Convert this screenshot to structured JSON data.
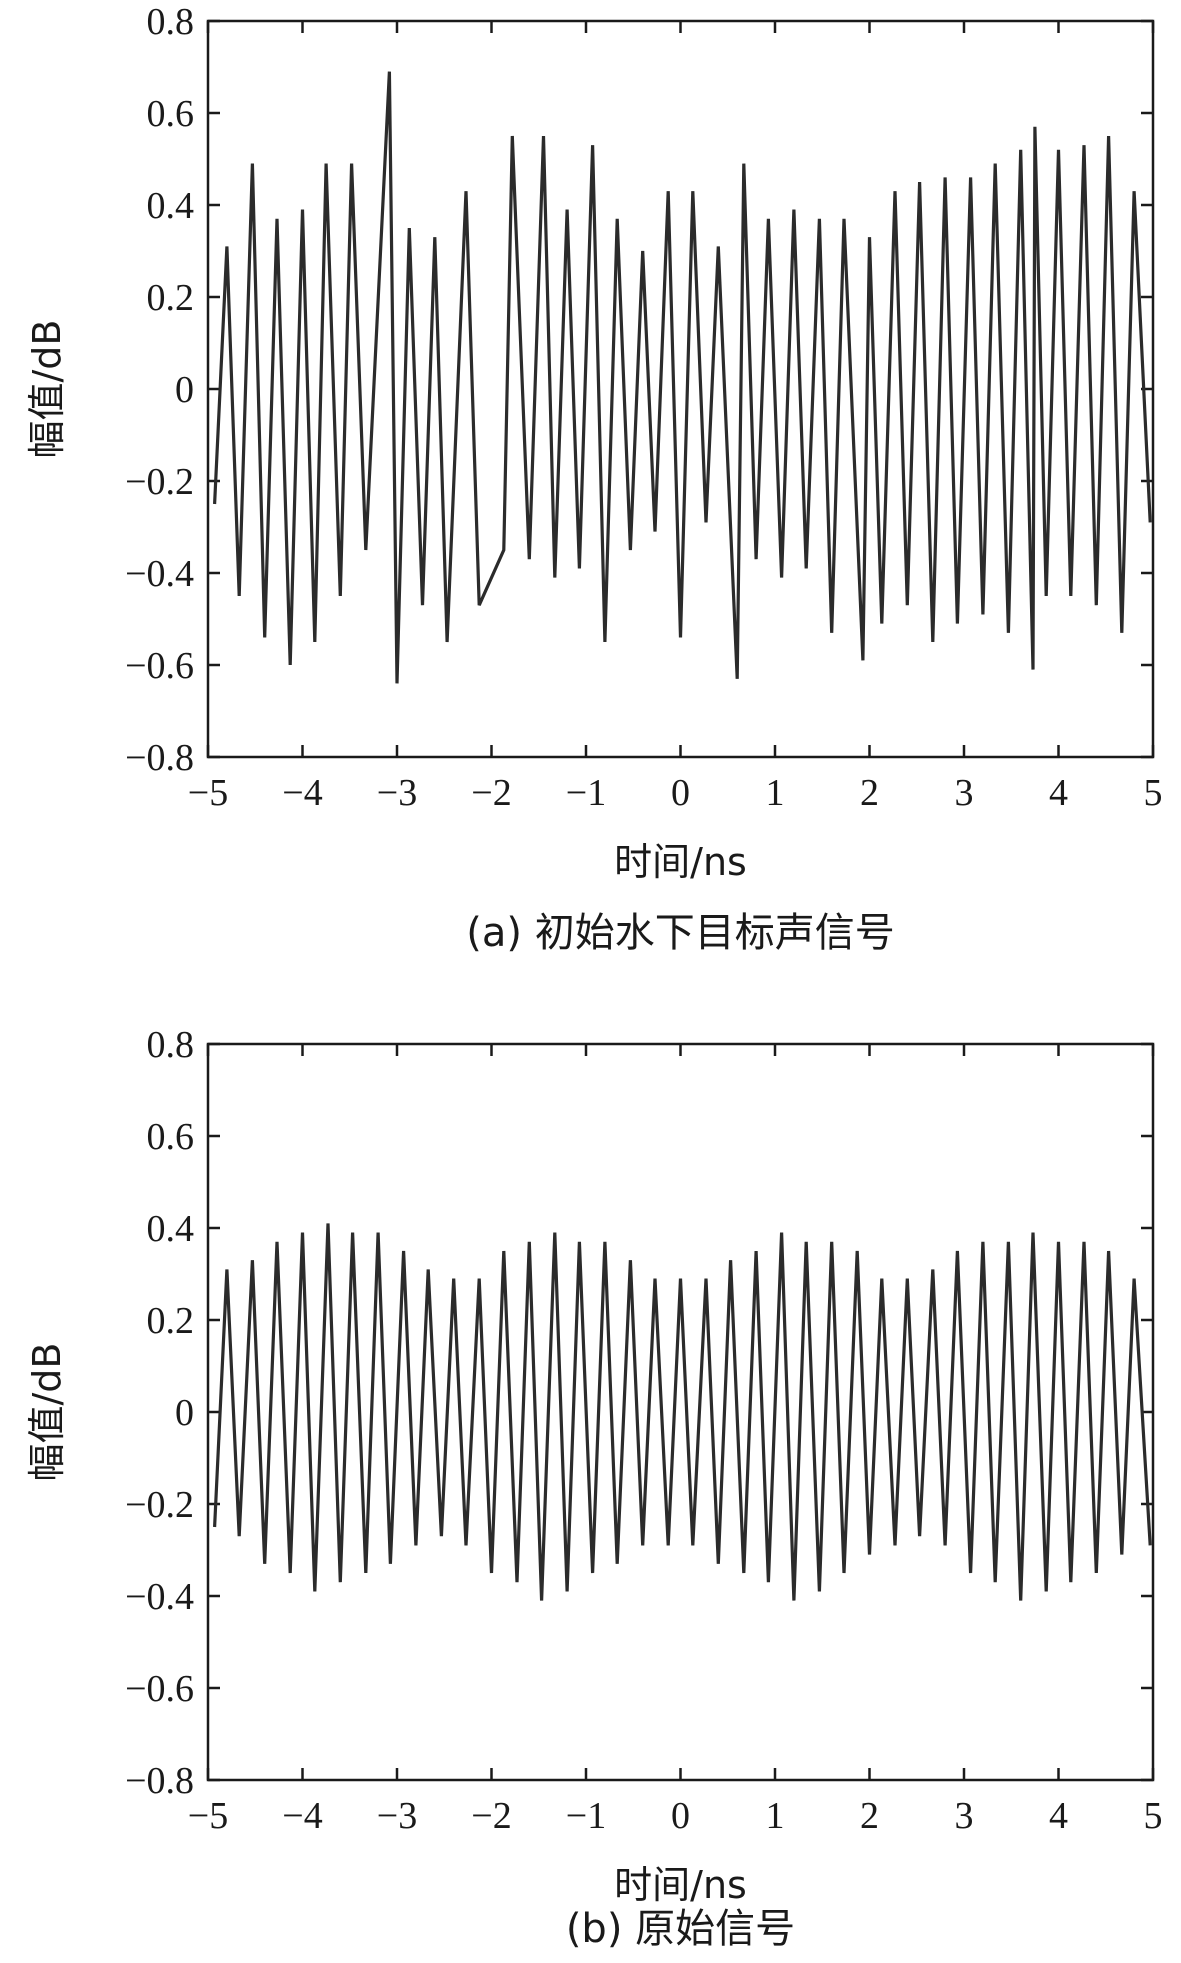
{
  "chart_data": [
    {
      "id": "a",
      "type": "line",
      "caption": "(a) 初始水下目标声信号",
      "xlabel": "时间/ns",
      "ylabel": "幅值/dB",
      "xlim": [
        -5,
        5
      ],
      "ylim": [
        -0.8,
        0.8
      ],
      "xticks": [
        -5,
        -4,
        -3,
        -2,
        -1,
        0,
        1,
        2,
        3,
        4,
        5
      ],
      "xtick_labels": [
        "−5",
        "−4",
        "−3",
        "−2",
        "−1",
        "0",
        "1",
        "2",
        "3",
        "4",
        "5"
      ],
      "yticks": [
        0.8,
        0.6,
        0.4,
        0.2,
        0,
        -0.2,
        -0.4,
        -0.6,
        -0.8
      ],
      "ytick_labels": [
        "0.8",
        "0.6",
        "0.4",
        "0.2",
        "0",
        "−0.2",
        "−0.4",
        "−0.6",
        "−0.8"
      ],
      "grid": false,
      "peaks": [
        {
          "x": -4.8,
          "y": 0.31
        },
        {
          "x": -4.53,
          "y": 0.49
        },
        {
          "x": -4.27,
          "y": 0.37
        },
        {
          "x": -4.0,
          "y": 0.39
        },
        {
          "x": -3.75,
          "y": 0.49
        },
        {
          "x": -3.48,
          "y": 0.49
        },
        {
          "x": -3.08,
          "y": 0.69
        },
        {
          "x": -2.87,
          "y": 0.35
        },
        {
          "x": -2.6,
          "y": 0.33
        },
        {
          "x": -2.27,
          "y": 0.43
        },
        {
          "x": -1.78,
          "y": 0.55
        },
        {
          "x": -1.45,
          "y": 0.55
        },
        {
          "x": -1.2,
          "y": 0.39
        },
        {
          "x": -0.93,
          "y": 0.53
        },
        {
          "x": -0.67,
          "y": 0.37
        },
        {
          "x": -0.4,
          "y": 0.3
        },
        {
          "x": -0.13,
          "y": 0.43
        },
        {
          "x": 0.13,
          "y": 0.43
        },
        {
          "x": 0.4,
          "y": 0.31
        },
        {
          "x": 0.67,
          "y": 0.49
        },
        {
          "x": 0.93,
          "y": 0.37
        },
        {
          "x": 1.2,
          "y": 0.39
        },
        {
          "x": 1.47,
          "y": 0.37
        },
        {
          "x": 1.73,
          "y": 0.37
        },
        {
          "x": 2.0,
          "y": 0.33
        },
        {
          "x": 2.27,
          "y": 0.43
        },
        {
          "x": 2.53,
          "y": 0.45
        },
        {
          "x": 2.8,
          "y": 0.46
        },
        {
          "x": 3.07,
          "y": 0.46
        },
        {
          "x": 3.33,
          "y": 0.49
        },
        {
          "x": 3.6,
          "y": 0.52
        },
        {
          "x": 3.75,
          "y": 0.57
        },
        {
          "x": 4.0,
          "y": 0.52
        },
        {
          "x": 4.27,
          "y": 0.53
        },
        {
          "x": 4.53,
          "y": 0.55
        },
        {
          "x": 4.8,
          "y": 0.43
        }
      ],
      "troughs": [
        {
          "x": -4.93,
          "y": -0.25
        },
        {
          "x": -4.67,
          "y": -0.45
        },
        {
          "x": -4.4,
          "y": -0.54
        },
        {
          "x": -4.13,
          "y": -0.6
        },
        {
          "x": -3.87,
          "y": -0.55
        },
        {
          "x": -3.6,
          "y": -0.45
        },
        {
          "x": -3.33,
          "y": -0.35
        },
        {
          "x": -3.0,
          "y": -0.64
        },
        {
          "x": -2.73,
          "y": -0.47
        },
        {
          "x": -2.47,
          "y": -0.55
        },
        {
          "x": -2.13,
          "y": -0.47
        },
        {
          "x": -1.87,
          "y": -0.35
        },
        {
          "x": -1.6,
          "y": -0.37
        },
        {
          "x": -1.33,
          "y": -0.41
        },
        {
          "x": -1.07,
          "y": -0.39
        },
        {
          "x": -0.8,
          "y": -0.55
        },
        {
          "x": -0.53,
          "y": -0.35
        },
        {
          "x": -0.27,
          "y": -0.31
        },
        {
          "x": 0.0,
          "y": -0.54
        },
        {
          "x": 0.27,
          "y": -0.29
        },
        {
          "x": 0.6,
          "y": -0.63
        },
        {
          "x": 0.8,
          "y": -0.37
        },
        {
          "x": 1.07,
          "y": -0.41
        },
        {
          "x": 1.33,
          "y": -0.39
        },
        {
          "x": 1.6,
          "y": -0.53
        },
        {
          "x": 1.93,
          "y": -0.59
        },
        {
          "x": 2.13,
          "y": -0.51
        },
        {
          "x": 2.4,
          "y": -0.47
        },
        {
          "x": 2.67,
          "y": -0.55
        },
        {
          "x": 2.93,
          "y": -0.51
        },
        {
          "x": 3.2,
          "y": -0.49
        },
        {
          "x": 3.47,
          "y": -0.53
        },
        {
          "x": 3.73,
          "y": -0.61
        },
        {
          "x": 3.87,
          "y": -0.45
        },
        {
          "x": 4.13,
          "y": -0.45
        },
        {
          "x": 4.4,
          "y": -0.47
        },
        {
          "x": 4.67,
          "y": -0.53
        },
        {
          "x": 4.97,
          "y": -0.29
        }
      ]
    },
    {
      "id": "b",
      "type": "line",
      "caption": "(b) 原始信号",
      "xlabel": "时间/ns",
      "ylabel": "幅值/dB",
      "xlim": [
        -5,
        5
      ],
      "ylim": [
        -0.8,
        0.8
      ],
      "xticks": [
        -5,
        -4,
        -3,
        -2,
        -1,
        0,
        1,
        2,
        3,
        4,
        5
      ],
      "xtick_labels": [
        "−5",
        "−4",
        "−3",
        "−2",
        "−1",
        "0",
        "1",
        "2",
        "3",
        "4",
        "5"
      ],
      "yticks": [
        0.8,
        0.6,
        0.4,
        0.2,
        0,
        -0.2,
        -0.4,
        -0.6,
        -0.8
      ],
      "ytick_labels": [
        "0.8",
        "0.6",
        "0.4",
        "0.2",
        "0",
        "−0.2",
        "−0.4",
        "−0.6",
        "−0.8"
      ],
      "grid": false,
      "peaks": [
        {
          "x": -4.8,
          "y": 0.31
        },
        {
          "x": -4.53,
          "y": 0.33
        },
        {
          "x": -4.27,
          "y": 0.37
        },
        {
          "x": -4.0,
          "y": 0.39
        },
        {
          "x": -3.73,
          "y": 0.41
        },
        {
          "x": -3.47,
          "y": 0.39
        },
        {
          "x": -3.2,
          "y": 0.39
        },
        {
          "x": -2.93,
          "y": 0.35
        },
        {
          "x": -2.67,
          "y": 0.31
        },
        {
          "x": -2.4,
          "y": 0.29
        },
        {
          "x": -2.13,
          "y": 0.29
        },
        {
          "x": -1.87,
          "y": 0.35
        },
        {
          "x": -1.6,
          "y": 0.37
        },
        {
          "x": -1.33,
          "y": 0.39
        },
        {
          "x": -1.07,
          "y": 0.37
        },
        {
          "x": -0.8,
          "y": 0.37
        },
        {
          "x": -0.53,
          "y": 0.33
        },
        {
          "x": -0.27,
          "y": 0.29
        },
        {
          "x": 0.0,
          "y": 0.29
        },
        {
          "x": 0.27,
          "y": 0.29
        },
        {
          "x": 0.53,
          "y": 0.33
        },
        {
          "x": 0.8,
          "y": 0.35
        },
        {
          "x": 1.07,
          "y": 0.39
        },
        {
          "x": 1.33,
          "y": 0.37
        },
        {
          "x": 1.6,
          "y": 0.37
        },
        {
          "x": 1.87,
          "y": 0.35
        },
        {
          "x": 2.13,
          "y": 0.29
        },
        {
          "x": 2.4,
          "y": 0.29
        },
        {
          "x": 2.67,
          "y": 0.31
        },
        {
          "x": 2.93,
          "y": 0.35
        },
        {
          "x": 3.2,
          "y": 0.37
        },
        {
          "x": 3.47,
          "y": 0.37
        },
        {
          "x": 3.73,
          "y": 0.39
        },
        {
          "x": 4.0,
          "y": 0.37
        },
        {
          "x": 4.27,
          "y": 0.37
        },
        {
          "x": 4.53,
          "y": 0.35
        },
        {
          "x": 4.8,
          "y": 0.29
        }
      ],
      "troughs": [
        {
          "x": -4.93,
          "y": -0.25
        },
        {
          "x": -4.67,
          "y": -0.27
        },
        {
          "x": -4.4,
          "y": -0.33
        },
        {
          "x": -4.13,
          "y": -0.35
        },
        {
          "x": -3.87,
          "y": -0.39
        },
        {
          "x": -3.6,
          "y": -0.37
        },
        {
          "x": -3.33,
          "y": -0.35
        },
        {
          "x": -3.07,
          "y": -0.33
        },
        {
          "x": -2.8,
          "y": -0.29
        },
        {
          "x": -2.53,
          "y": -0.27
        },
        {
          "x": -2.27,
          "y": -0.29
        },
        {
          "x": -2.0,
          "y": -0.35
        },
        {
          "x": -1.73,
          "y": -0.37
        },
        {
          "x": -1.47,
          "y": -0.41
        },
        {
          "x": -1.2,
          "y": -0.39
        },
        {
          "x": -0.93,
          "y": -0.35
        },
        {
          "x": -0.67,
          "y": -0.33
        },
        {
          "x": -0.4,
          "y": -0.29
        },
        {
          "x": -0.13,
          "y": -0.29
        },
        {
          "x": 0.13,
          "y": -0.29
        },
        {
          "x": 0.4,
          "y": -0.33
        },
        {
          "x": 0.67,
          "y": -0.35
        },
        {
          "x": 0.93,
          "y": -0.37
        },
        {
          "x": 1.2,
          "y": -0.41
        },
        {
          "x": 1.47,
          "y": -0.39
        },
        {
          "x": 1.73,
          "y": -0.35
        },
        {
          "x": 2.0,
          "y": -0.31
        },
        {
          "x": 2.27,
          "y": -0.29
        },
        {
          "x": 2.53,
          "y": -0.27
        },
        {
          "x": 2.8,
          "y": -0.29
        },
        {
          "x": 3.07,
          "y": -0.35
        },
        {
          "x": 3.33,
          "y": -0.37
        },
        {
          "x": 3.6,
          "y": -0.41
        },
        {
          "x": 3.87,
          "y": -0.39
        },
        {
          "x": 4.13,
          "y": -0.37
        },
        {
          "x": 4.4,
          "y": -0.35
        },
        {
          "x": 4.67,
          "y": -0.31
        },
        {
          "x": 4.97,
          "y": -0.29
        }
      ]
    }
  ]
}
